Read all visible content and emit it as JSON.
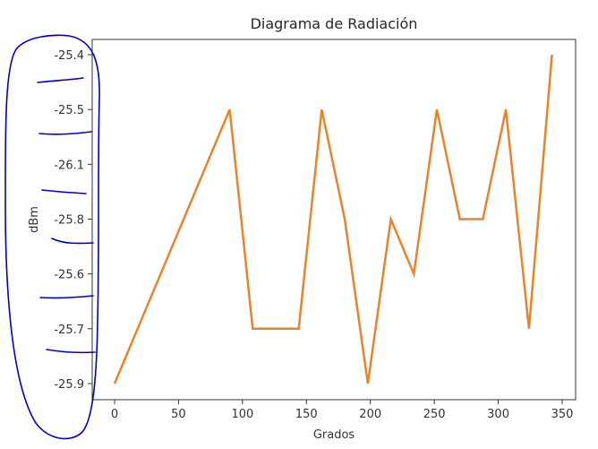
{
  "chart_data": {
    "type": "line",
    "title": "Diagrama de Radiación",
    "xlabel": "Grados",
    "ylabel": "dBm",
    "x_ticks": [
      0,
      50,
      100,
      150,
      200,
      250,
      300,
      350
    ],
    "y_tick_labels": [
      "-25.4",
      "-25.5",
      "-26.1",
      "-25.8",
      "-25.6",
      "-25.7",
      "-25.9"
    ],
    "y_axis_note": "categorical y-axis; labels ordered top to bottom as shown",
    "xlim": [
      -18,
      360
    ],
    "grid": false,
    "legend": null,
    "series": [
      {
        "name": "dBm",
        "color": "#e8832a",
        "x": [
          0,
          90,
          108,
          144,
          162,
          180,
          198,
          216,
          234,
          252,
          270,
          288,
          306,
          324,
          342
        ],
        "y": [
          "-25.9",
          "-25.5",
          "-25.7",
          "-25.7",
          "-25.5",
          "-25.8",
          "-25.9",
          "-25.8",
          "-25.6",
          "-25.5",
          "-25.8",
          "-25.8",
          "-25.5",
          "-25.7",
          "-25.4"
        ]
      }
    ]
  },
  "annotations": {
    "hand_drawn_outline": {
      "color": "#0000cc",
      "description": "blue hand-drawn loop circling the y-axis tick labels with separator strokes"
    }
  }
}
